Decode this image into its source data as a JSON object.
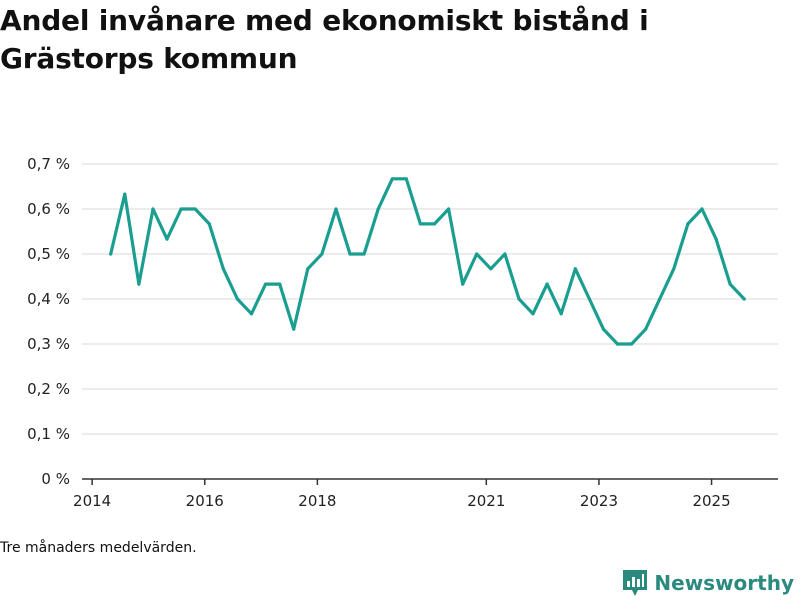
{
  "title": "Andel invånare med ekonomiskt bistånd i Grästorps kommun",
  "note": "Tre månaders medelvärden.",
  "brand": {
    "name": "Newsworthy",
    "color": "#2b8a7e"
  },
  "colors": {
    "line": "#1a9e8f",
    "grid": "#d9d9d9",
    "axis": "#333333"
  },
  "chart_data": {
    "type": "line",
    "title": "Andel invånare med ekonomiskt bistånd i Grästorps kommun",
    "xlabel": "",
    "ylabel": "",
    "xlim": [
      2013.82,
      2026.18
    ],
    "ylim": [
      0,
      0.7
    ],
    "yticks": [
      0,
      0.1,
      0.2,
      0.3,
      0.4,
      0.5,
      0.6,
      0.7
    ],
    "ytick_labels": [
      "0 %",
      "0,1 %",
      "0,2 %",
      "0,3 %",
      "0,4 %",
      "0,5 %",
      "0,6 %",
      "0,7 %"
    ],
    "xticks": [
      2014,
      2016,
      2018,
      2021,
      2023,
      2025
    ],
    "xtick_labels": [
      "2014",
      "2016",
      "2018",
      "2021",
      "2023",
      "2025"
    ],
    "grid": true,
    "series": [
      {
        "name": "Andel invånare med ekonomiskt bistånd",
        "x": [
          2014.33,
          2014.58,
          2014.83,
          2015.08,
          2015.33,
          2015.58,
          2015.83,
          2016.08,
          2016.33,
          2016.58,
          2016.83,
          2017.08,
          2017.33,
          2017.58,
          2017.83,
          2018.08,
          2018.33,
          2018.58,
          2018.83,
          2019.08,
          2019.33,
          2019.58,
          2019.83,
          2020.08,
          2020.33,
          2020.58,
          2020.83,
          2021.08,
          2021.33,
          2021.58,
          2021.83,
          2022.08,
          2022.33,
          2022.58,
          2022.83,
          2023.08,
          2023.33,
          2023.58,
          2023.83,
          2024.08,
          2024.33,
          2024.58,
          2024.83,
          2025.08,
          2025.33,
          2025.58
        ],
        "values": [
          0.5,
          0.633,
          0.433,
          0.6,
          0.533,
          0.6,
          0.6,
          0.567,
          0.467,
          0.4,
          0.367,
          0.433,
          0.433,
          0.333,
          0.467,
          0.5,
          0.6,
          0.5,
          0.5,
          0.6,
          0.667,
          0.667,
          0.567,
          0.567,
          0.6,
          0.433,
          0.5,
          0.467,
          0.5,
          0.4,
          0.367,
          0.433,
          0.367,
          0.467,
          0.4,
          0.333,
          0.3,
          0.3,
          0.333,
          0.4,
          0.467,
          0.567,
          0.6,
          0.533,
          0.433,
          0.4
        ]
      }
    ]
  }
}
